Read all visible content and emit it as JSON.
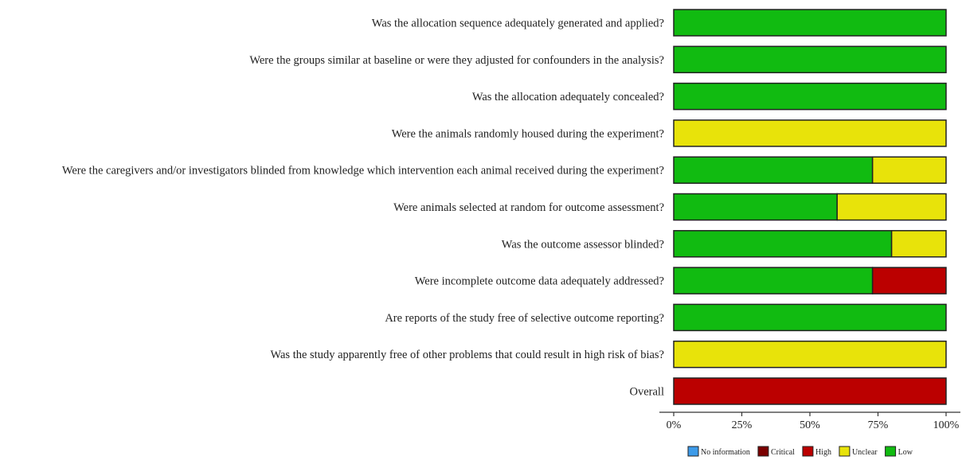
{
  "chart_data": {
    "type": "bar",
    "orientation": "horizontal",
    "stacked": true,
    "categories": [
      "Was the allocation sequence adequately generated and applied?",
      "Were the groups similar at baseline or were they adjusted for confounders in the analysis?",
      "Was the allocation adequately concealed?",
      "Were the animals randomly housed during the experiment?",
      "Were the caregivers and/or investigators blinded from knowledge which intervention each animal received during the experiment?",
      "Were animals selected at random for outcome assessment?",
      "Was the outcome assessor blinded?",
      "Were incomplete outcome data adequately addressed?",
      "Are reports of the study free of selective outcome reporting?",
      "Was the study apparently free of other problems that could result in high risk of bias?",
      "Overall"
    ],
    "series": [
      {
        "name": "Low",
        "color": "#11bb11",
        "values": [
          100,
          100,
          100,
          0,
          73,
          60,
          80,
          73,
          100,
          0,
          0
        ]
      },
      {
        "name": "Unclear",
        "color": "#e8e30a",
        "values": [
          0,
          0,
          0,
          100,
          27,
          40,
          20,
          0,
          0,
          100,
          0
        ]
      },
      {
        "name": "High",
        "color": "#bb0000",
        "values": [
          0,
          0,
          0,
          0,
          0,
          0,
          0,
          27,
          0,
          0,
          100
        ]
      },
      {
        "name": "Critical",
        "color": "#7a0000",
        "values": [
          0,
          0,
          0,
          0,
          0,
          0,
          0,
          0,
          0,
          0,
          0
        ]
      },
      {
        "name": "No information",
        "color": "#3d9be9",
        "values": [
          0,
          0,
          0,
          0,
          0,
          0,
          0,
          0,
          0,
          0,
          0
        ]
      }
    ],
    "legend": {
      "position": "bottom-right",
      "entries": [
        {
          "label": "No information",
          "color": "#3d9be9"
        },
        {
          "label": "Critical",
          "color": "#7a0000"
        },
        {
          "label": "High",
          "color": "#bb0000"
        },
        {
          "label": "Unclear",
          "color": "#e8e30a"
        },
        {
          "label": "Low",
          "color": "#11bb11"
        }
      ]
    },
    "xlim": [
      0,
      100
    ],
    "xticks": [
      "0%",
      "25%",
      "50%",
      "75%",
      "100%"
    ],
    "grid": false,
    "title": "",
    "xlabel": "",
    "ylabel": ""
  }
}
